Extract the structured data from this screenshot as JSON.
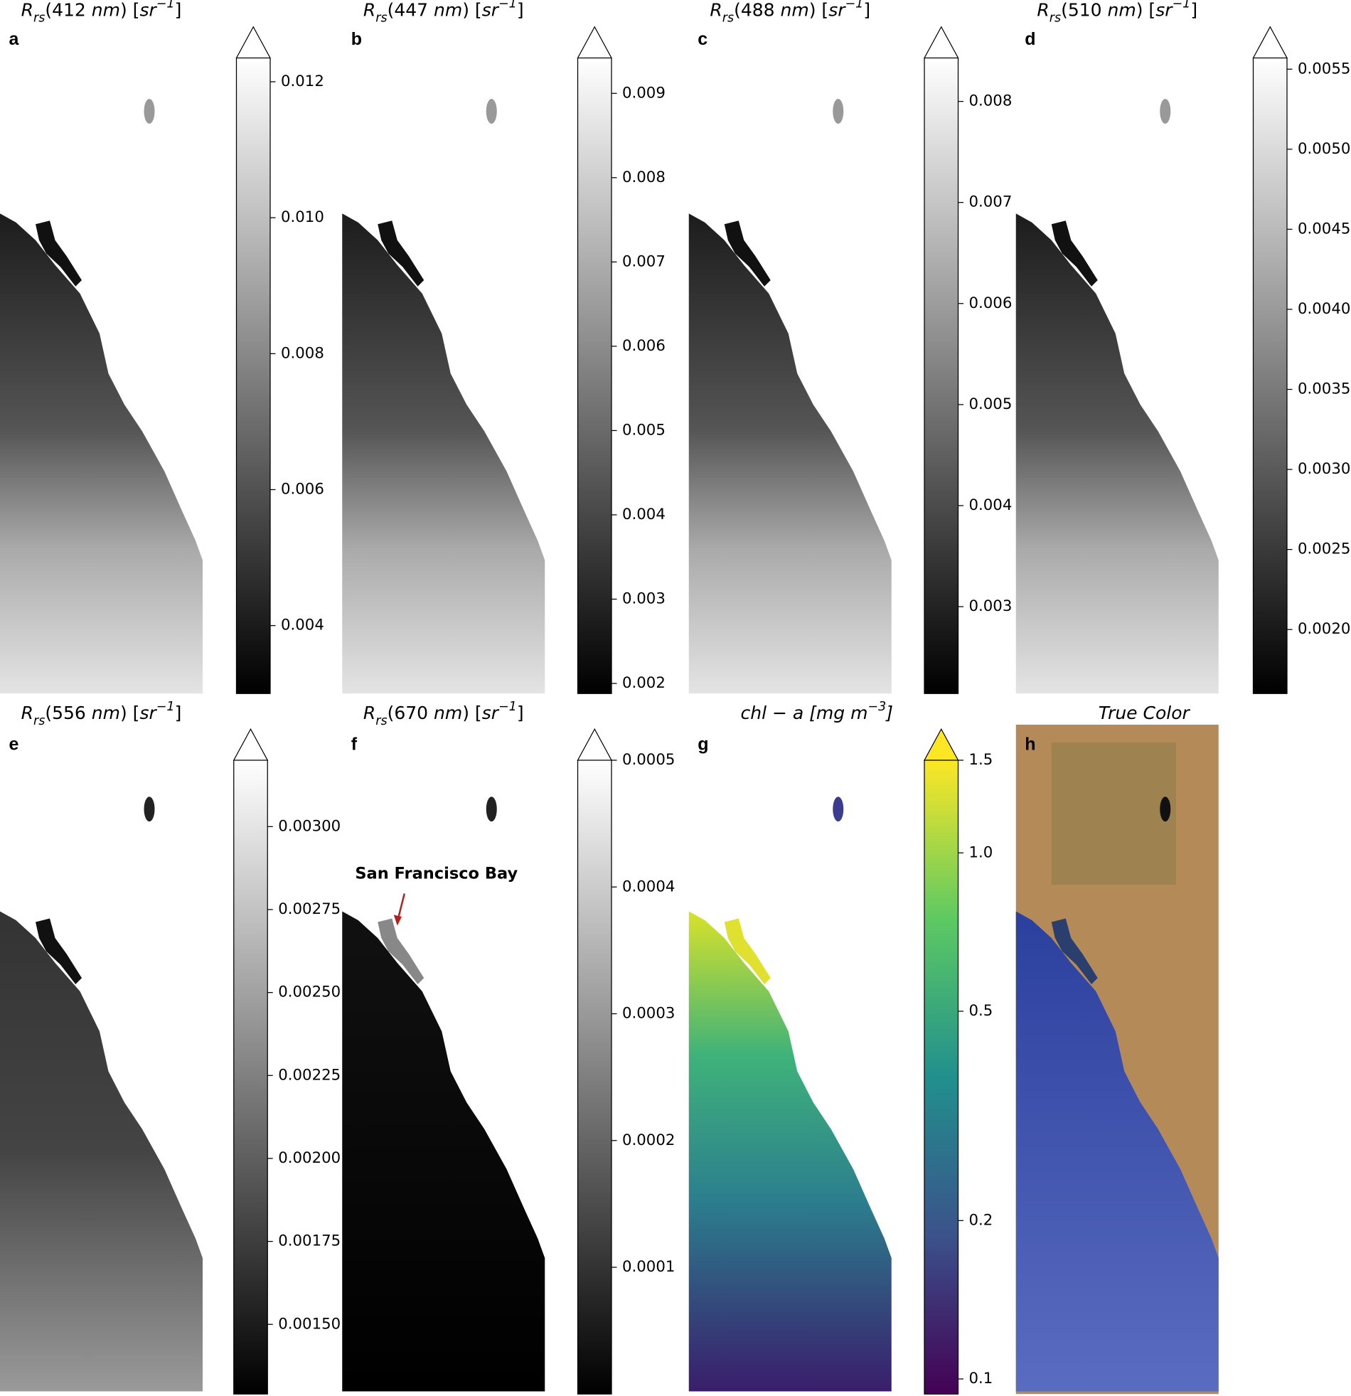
{
  "chart_data": [
    {
      "type": "colormap",
      "label": "a",
      "cmap": "gray",
      "extend": "max",
      "title": [
        {
          "text": "R",
          "style": "italic"
        },
        {
          "text": "rs",
          "style": "sub"
        },
        {
          "text": "(412 "
        },
        {
          "text": "nm",
          "style": "italic"
        },
        {
          "text": ") ["
        },
        {
          "text": "sr",
          "style": "italic"
        },
        {
          "text": "−1",
          "style": "sup"
        },
        {
          "text": "]"
        }
      ],
      "ylim": [
        0.003,
        0.01235
      ],
      "yticks": [
        {
          "value": 0.004,
          "label": "0.004"
        },
        {
          "value": 0.006,
          "label": "0.006"
        },
        {
          "value": 0.008,
          "label": "0.008"
        },
        {
          "value": 0.01,
          "label": "0.010"
        },
        {
          "value": 0.012,
          "label": "0.012"
        }
      ]
    },
    {
      "type": "colormap",
      "label": "b",
      "cmap": "gray",
      "extend": "max",
      "title": [
        {
          "text": "R",
          "style": "italic"
        },
        {
          "text": "rs",
          "style": "sub"
        },
        {
          "text": "(447 "
        },
        {
          "text": "nm",
          "style": "italic"
        },
        {
          "text": ") ["
        },
        {
          "text": "sr",
          "style": "italic"
        },
        {
          "text": "−1",
          "style": "sup"
        },
        {
          "text": "]"
        }
      ],
      "ylim": [
        0.00188,
        0.00942
      ],
      "yticks": [
        0.002,
        0.003,
        0.004,
        0.005,
        0.006,
        0.007,
        0.008,
        0.009
      ]
    },
    {
      "type": "colormap",
      "label": "c",
      "cmap": "gray",
      "extend": "max",
      "title": [
        {
          "text": "R",
          "style": "italic"
        },
        {
          "text": "rs",
          "style": "sub"
        },
        {
          "text": "(488 "
        },
        {
          "text": "nm",
          "style": "italic"
        },
        {
          "text": ") ["
        },
        {
          "text": "sr",
          "style": "italic"
        },
        {
          "text": "−1",
          "style": "sup"
        },
        {
          "text": "]"
        }
      ],
      "ylim": [
        0.00214,
        0.00843
      ],
      "yticks": [
        0.003,
        0.004,
        0.005,
        0.006,
        0.007,
        0.008
      ]
    },
    {
      "type": "colormap",
      "label": "d",
      "cmap": "gray",
      "extend": "max",
      "title": [
        {
          "text": "R",
          "style": "italic"
        },
        {
          "text": "rs",
          "style": "sub"
        },
        {
          "text": "(510 "
        },
        {
          "text": "nm",
          "style": "italic"
        },
        {
          "text": ") ["
        },
        {
          "text": "sr",
          "style": "italic"
        },
        {
          "text": "−1",
          "style": "sup"
        },
        {
          "text": "]"
        }
      ],
      "ylim": [
        0.0016,
        0.00557
      ],
      "yticks": [
        {
          "value": 0.002,
          "label": "0.0020"
        },
        0.0025,
        {
          "value": 0.003,
          "label": "0.0030"
        },
        0.0035,
        {
          "value": 0.004,
          "label": "0.0040"
        },
        0.0045,
        {
          "value": 0.005,
          "label": "0.0050"
        },
        0.0055
      ]
    },
    {
      "type": "colormap",
      "label": "e",
      "cmap": "gray",
      "extend": "max",
      "title": [
        {
          "text": "R",
          "style": "italic"
        },
        {
          "text": "rs",
          "style": "sub"
        },
        {
          "text": "(556 "
        },
        {
          "text": "nm",
          "style": "italic"
        },
        {
          "text": ") ["
        },
        {
          "text": "sr",
          "style": "italic"
        },
        {
          "text": "−1",
          "style": "sup"
        },
        {
          "text": "]"
        }
      ],
      "ylim": [
        0.00129,
        0.0032
      ],
      "yticks": [
        {
          "value": 0.0015,
          "label": "0.00150"
        },
        0.00175,
        {
          "value": 0.002,
          "label": "0.00200"
        },
        0.00225,
        {
          "value": 0.0025,
          "label": "0.00250"
        },
        0.00275,
        {
          "value": 0.003,
          "label": "0.00300"
        }
      ]
    },
    {
      "type": "colormap",
      "label": "f",
      "cmap": "gray",
      "extend": "max",
      "title": [
        {
          "text": "R",
          "style": "italic"
        },
        {
          "text": "rs",
          "style": "sub"
        },
        {
          "text": "(670 "
        },
        {
          "text": "nm",
          "style": "italic"
        },
        {
          "text": ") ["
        },
        {
          "text": "sr",
          "style": "italic"
        },
        {
          "text": "−1",
          "style": "sup"
        },
        {
          "text": "]"
        }
      ],
      "annotation": "San Francisco Bay",
      "ylim": [
        0,
        0.0005
      ],
      "yticks": [
        0.0001,
        0.0002,
        0.0003,
        0.0004,
        0.0005
      ]
    },
    {
      "type": "colormap",
      "label": "g",
      "cmap": "viridis",
      "extend": "max",
      "yscale": "log",
      "title": [
        {
          "text": "chl − a [mg m",
          "style": "italic"
        },
        {
          "text": "−3",
          "style": "sup"
        },
        {
          "text": "]",
          "style": "italic"
        }
      ],
      "ylim": [
        0.0936,
        1.5
      ],
      "yticks": [
        0.1,
        0.2,
        0.5,
        {
          "value": 1,
          "label": "1.0"
        },
        1.5
      ]
    },
    {
      "type": "image",
      "label": "h",
      "title": [
        {
          "text": "True Color",
          "style": "italic"
        }
      ]
    }
  ]
}
